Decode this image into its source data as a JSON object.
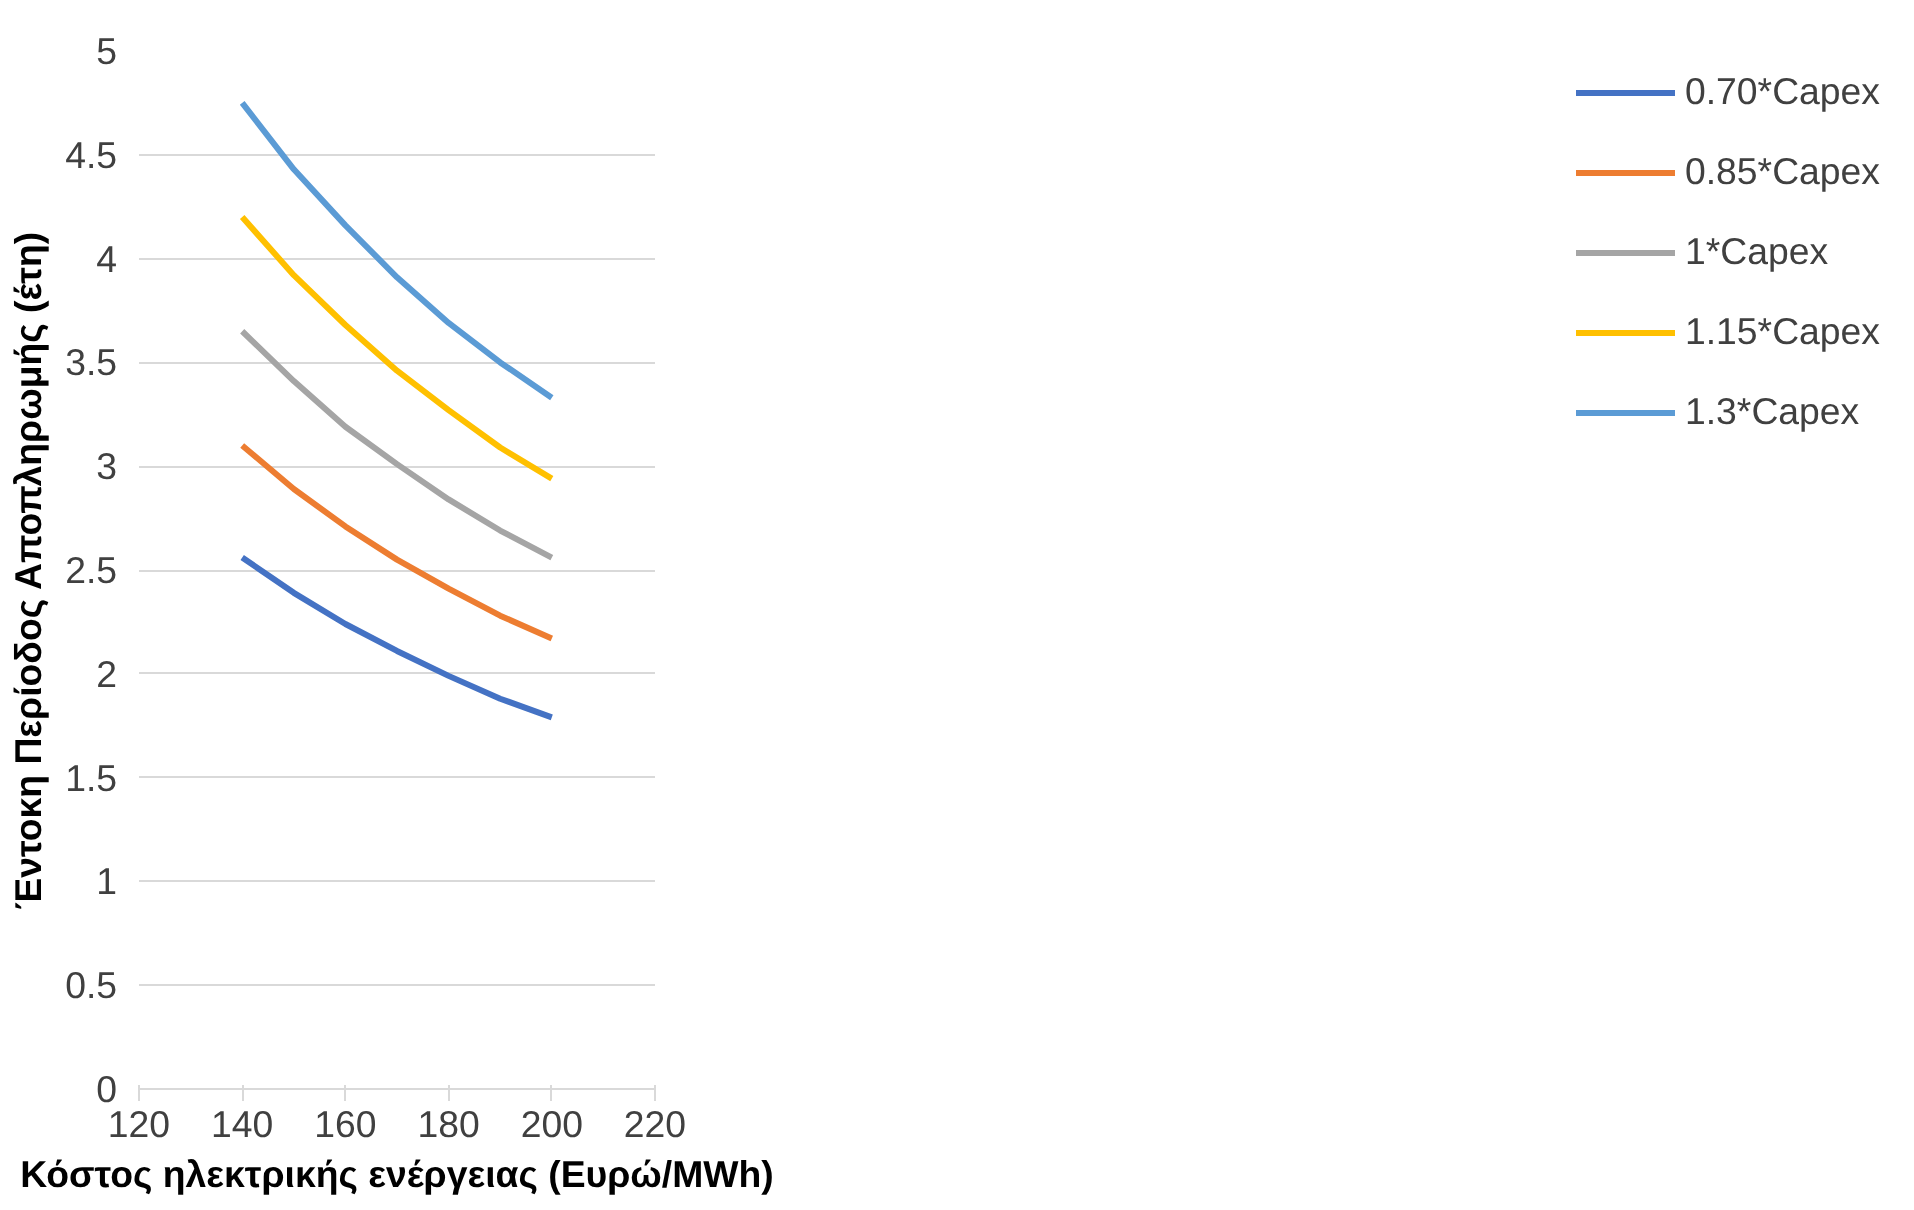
{
  "chart_data": {
    "type": "line",
    "xlabel": "Κόστος ηλεκτρικής ενέργειας (Ευρώ/MWh)",
    "ylabel": "Έντοκη Περίοδος Αποπληρωμής (έτη)",
    "x": [
      140,
      150,
      160,
      170,
      180,
      190,
      200
    ],
    "series": [
      {
        "name": "0.70*Capex",
        "color": "#4472c4",
        "values": [
          2.56,
          2.39,
          2.24,
          2.11,
          1.99,
          1.88,
          1.79
        ]
      },
      {
        "name": "0.85*Capex",
        "color": "#ed7d31",
        "values": [
          3.1,
          2.89,
          2.71,
          2.55,
          2.41,
          2.28,
          2.17
        ]
      },
      {
        "name": "1*Capex",
        "color": "#a5a5a5",
        "values": [
          3.65,
          3.41,
          3.19,
          3.01,
          2.84,
          2.69,
          2.56
        ]
      },
      {
        "name": "1.15*Capex",
        "color": "#ffc000",
        "values": [
          4.2,
          3.92,
          3.68,
          3.46,
          3.27,
          3.09,
          2.94
        ]
      },
      {
        "name": "1.3*Capex",
        "color": "#5b9bd5",
        "values": [
          4.75,
          4.43,
          4.16,
          3.91,
          3.69,
          3.5,
          3.33
        ]
      }
    ],
    "xlim": [
      120,
      220
    ],
    "xticks": [
      120,
      140,
      160,
      180,
      200,
      220
    ],
    "ylim": [
      0,
      5
    ],
    "yticks": [
      0,
      0.5,
      1,
      1.5,
      2,
      2.5,
      3,
      3.5,
      4,
      4.5,
      5
    ],
    "grid": "y",
    "legend": "right",
    "marker": "none",
    "line_style": "solid"
  }
}
